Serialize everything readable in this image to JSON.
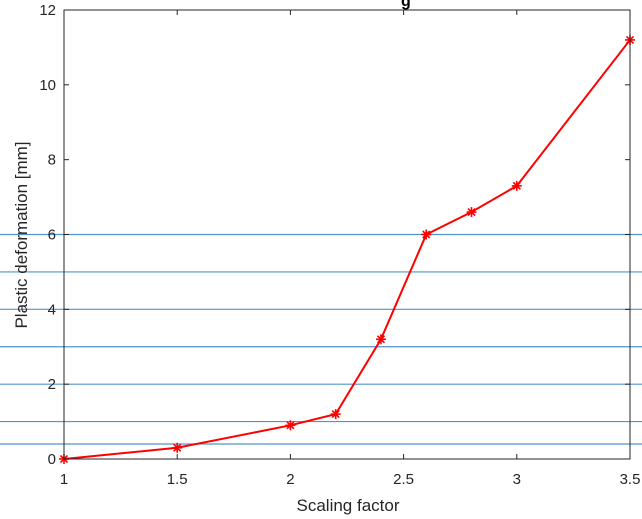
{
  "chart_data": {
    "type": "line",
    "title": "g",
    "xlabel": "Scaling factor",
    "ylabel": "Plastic deformation [mm]",
    "xlim": [
      1,
      3.5
    ],
    "ylim": [
      0,
      12
    ],
    "xticks": [
      1,
      1.5,
      2,
      2.5,
      3,
      3.5
    ],
    "yticks": [
      0,
      2,
      4,
      6,
      8,
      10,
      12
    ],
    "xtick_labels": [
      "1",
      "1.5",
      "2",
      "2.5",
      "3",
      "3.5"
    ],
    "ytick_labels": [
      "0",
      "2",
      "4",
      "6",
      "8",
      "10",
      "12"
    ],
    "grid": false,
    "reference_lines": [
      0.4,
      1,
      2,
      3,
      4,
      5,
      6
    ],
    "series": [
      {
        "x": [
          1,
          1.5,
          2,
          2.2,
          2.4,
          2.6,
          2.8,
          3,
          3.5
        ],
        "y": [
          0,
          0.3,
          0.9,
          1.2,
          3.2,
          6.0,
          6.6,
          7.3,
          11.2
        ],
        "marker": "asterisk"
      }
    ],
    "colors": {
      "series": "#ff0000",
      "reference": "#4f94cd",
      "axis": "#262626"
    }
  }
}
